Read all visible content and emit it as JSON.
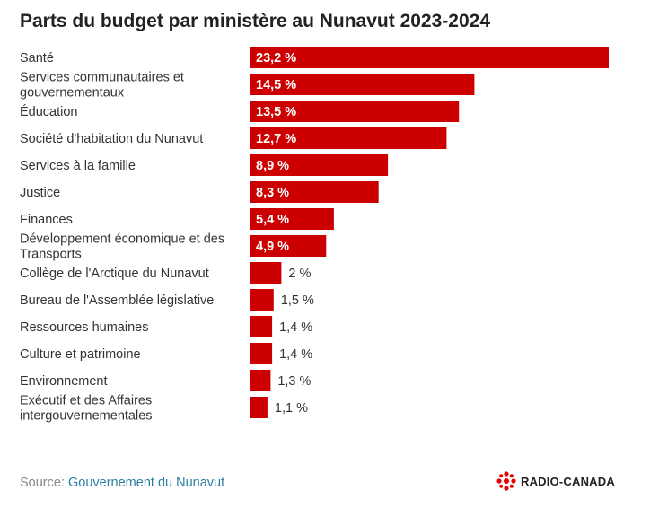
{
  "chart_data": {
    "type": "bar",
    "orientation": "horizontal",
    "title": "Parts du budget par ministère au Nunavut 2023-2024",
    "categories": [
      [
        "Santé"
      ],
      [
        "Services communautaires et",
        "gouvernementaux"
      ],
      [
        "Éducation"
      ],
      [
        "Société d'habitation du Nunavut"
      ],
      [
        "Services à la famille"
      ],
      [
        "Justice"
      ],
      [
        "Finances"
      ],
      [
        "Développement économique et des",
        "Transports"
      ],
      [
        "Collège de l'Arctique du Nunavut"
      ],
      [
        "Bureau de l'Assemblée législative"
      ],
      [
        "Ressources humaines"
      ],
      [
        "Culture et patrimoine"
      ],
      [
        "Environnement"
      ],
      [
        "Exécutif et des Affaires",
        "intergouvernementales"
      ]
    ],
    "values": [
      23.2,
      14.5,
      13.5,
      12.7,
      8.9,
      8.3,
      5.4,
      4.9,
      2,
      1.5,
      1.4,
      1.4,
      1.3,
      1.1
    ],
    "value_labels": [
      "23,2 %",
      "14,5 %",
      "13,5 %",
      "12,7 %",
      "8,9 %",
      "8,3 %",
      "5,4 %",
      "4,9 %",
      "2 %",
      "1,5 %",
      "1,4 %",
      "1,4 %",
      "1,3 %",
      "1,1 %"
    ],
    "bar_color": "#cc0000",
    "xlim": [
      0,
      23.2
    ],
    "grid": false,
    "legend": "none"
  },
  "footer": {
    "source_prefix": "Source: ",
    "source_name": "Gouvernement du Nunavut"
  },
  "logo": {
    "text": "RADIO-CANADA",
    "color": "#e60000",
    "icon": "radio-canada-gem-icon"
  }
}
